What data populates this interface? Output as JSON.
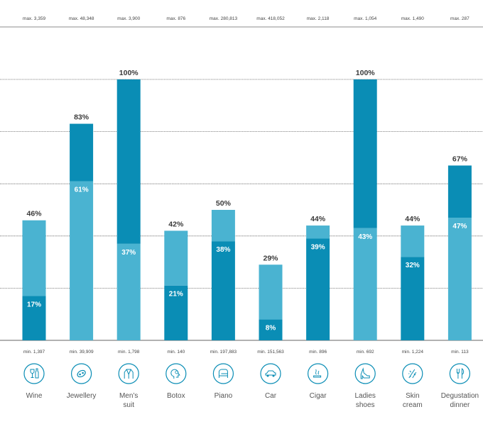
{
  "chart_data": {
    "type": "bar",
    "subtype": "stacked-range",
    "ylim": [
      0,
      100
    ],
    "gridlines": [
      0,
      20,
      40,
      60,
      80,
      100
    ],
    "colors": {
      "dark": "#0a8db5",
      "light": "#4ab3d1",
      "grid": "#666666"
    },
    "categories": [
      {
        "label": [
          "Wine"
        ],
        "icon": "wine-icon",
        "max": "max. 3,359",
        "min": "min. 1,397",
        "total": 46,
        "bottom": 17,
        "bottom_shade": "dark",
        "top_shade": "light",
        "top_label": "46%",
        "inner_label": "17%"
      },
      {
        "label": [
          "Jewellery"
        ],
        "icon": "jewellery-icon",
        "max": "max. 48,348",
        "min": "min. 39,909",
        "total": 83,
        "bottom": 61,
        "bottom_shade": "light",
        "top_shade": "dark",
        "top_label": "83%",
        "inner_label": "61%"
      },
      {
        "label": [
          "Men’s",
          "suit"
        ],
        "icon": "suit-icon",
        "max": "max. 3,900",
        "min": "min. 1,798",
        "total": 100,
        "bottom": 37,
        "bottom_shade": "light",
        "top_shade": "dark",
        "top_label": "100%",
        "inner_label": "37%"
      },
      {
        "label": [
          "Botox"
        ],
        "icon": "botox-icon",
        "max": "max. 876",
        "min": "min. 140",
        "total": 42,
        "bottom": 21,
        "bottom_shade": "dark",
        "top_shade": "light",
        "top_label": "42%",
        "inner_label": "21%"
      },
      {
        "label": [
          "Piano"
        ],
        "icon": "piano-icon",
        "max": "max. 280,813",
        "min": "min. 197,883",
        "total": 50,
        "bottom": 38,
        "bottom_shade": "dark",
        "top_shade": "light",
        "top_label": "50%",
        "inner_label": "38%"
      },
      {
        "label": [
          "Car"
        ],
        "icon": "car-icon",
        "max": "max. 418,052",
        "min": "min. 151,563",
        "total": 29,
        "bottom": 8,
        "bottom_shade": "dark",
        "top_shade": "light",
        "top_label": "29%",
        "inner_label": "8%"
      },
      {
        "label": [
          "Cigar"
        ],
        "icon": "cigar-icon",
        "max": "max. 2,118",
        "min": "min. 896",
        "total": 44,
        "bottom": 39,
        "bottom_shade": "dark",
        "top_shade": "light",
        "top_label": "44%",
        "inner_label": "39%"
      },
      {
        "label": [
          "Ladies",
          "shoes"
        ],
        "icon": "shoe-icon",
        "max": "max. 1,054",
        "min": "min. 692",
        "total": 100,
        "bottom": 43,
        "bottom_shade": "light",
        "top_shade": "dark",
        "top_label": "100%",
        "inner_label": "43%"
      },
      {
        "label": [
          "Skin",
          "cream"
        ],
        "icon": "skin-cream-icon",
        "max": "max. 1,490",
        "min": "min. 1,224",
        "total": 44,
        "bottom": 32,
        "bottom_shade": "dark",
        "top_shade": "light",
        "top_label": "44%",
        "inner_label": "32%"
      },
      {
        "label": [
          "Degustation",
          "dinner"
        ],
        "icon": "cutlery-icon",
        "max": "max. 287",
        "min": "min. 113",
        "total": 67,
        "bottom": 47,
        "bottom_shade": "light",
        "top_shade": "dark",
        "top_label": "67%",
        "inner_label": "47%"
      }
    ]
  }
}
